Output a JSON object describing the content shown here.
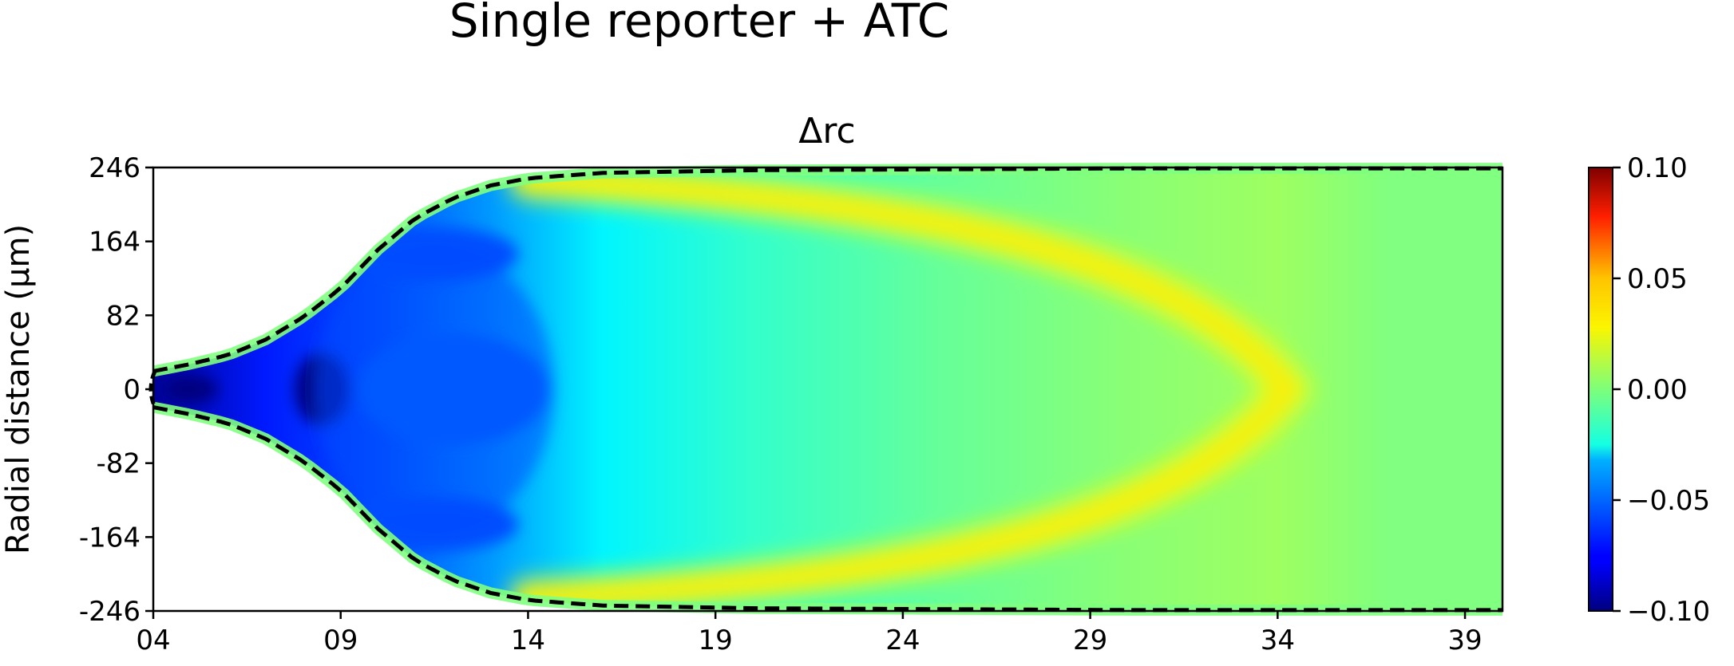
{
  "chart_data": {
    "type": "heatmap",
    "suptitle": "Single reporter + ATC",
    "title": "Δrc",
    "xlabel": "",
    "ylabel": "Radial distance (μm)",
    "x_ticks": [
      "04",
      "09",
      "14",
      "19",
      "24",
      "29",
      "34",
      "39"
    ],
    "y_ticks": [
      "246",
      "164",
      "82",
      "0",
      "-82",
      "-164",
      "-246"
    ],
    "xlim": [
      4,
      40
    ],
    "ylim": [
      -246,
      246
    ],
    "colorbar": {
      "colormap": "jet",
      "range": [
        -0.1,
        0.1
      ],
      "ticks": [
        "0.10",
        "0.05",
        "0.00",
        "−0.05",
        "−0.10"
      ]
    },
    "boundary": {
      "style": "dashed",
      "color": "#000000",
      "half_width_um": [
        [
          4,
          20
        ],
        [
          5,
          28
        ],
        [
          6,
          38
        ],
        [
          7,
          55
        ],
        [
          8,
          80
        ],
        [
          9,
          112
        ],
        [
          10,
          155
        ],
        [
          11,
          190
        ],
        [
          12,
          212
        ],
        [
          13,
          226
        ],
        [
          14,
          234
        ],
        [
          16,
          240
        ],
        [
          20,
          243
        ],
        [
          30,
          245
        ],
        [
          40,
          245
        ]
      ]
    },
    "field_features": [
      {
        "desc": "deep minimum",
        "x": 5,
        "y": 0,
        "value": -0.1
      },
      {
        "desc": "deep minimum",
        "x": 8.5,
        "y": 0,
        "value": -0.1
      },
      {
        "desc": "negative lobe",
        "x": 11.5,
        "y": 150,
        "value": -0.06
      },
      {
        "desc": "negative lobe",
        "x": 11.5,
        "y": -150,
        "value": -0.06
      },
      {
        "desc": "negative core",
        "x": 12,
        "y": 0,
        "value": -0.055
      },
      {
        "desc": "positive arc apex",
        "x": 34,
        "y": 0,
        "value": 0.02
      },
      {
        "desc": "positive arc",
        "x": 25,
        "y": 160,
        "value": 0.015
      },
      {
        "desc": "positive arc",
        "x": 25,
        "y": -160,
        "value": 0.015
      },
      {
        "desc": "positive edge",
        "x": 16,
        "y": 225,
        "value": 0.015
      },
      {
        "desc": "positive edge",
        "x": 16,
        "y": -225,
        "value": 0.015
      }
    ]
  }
}
